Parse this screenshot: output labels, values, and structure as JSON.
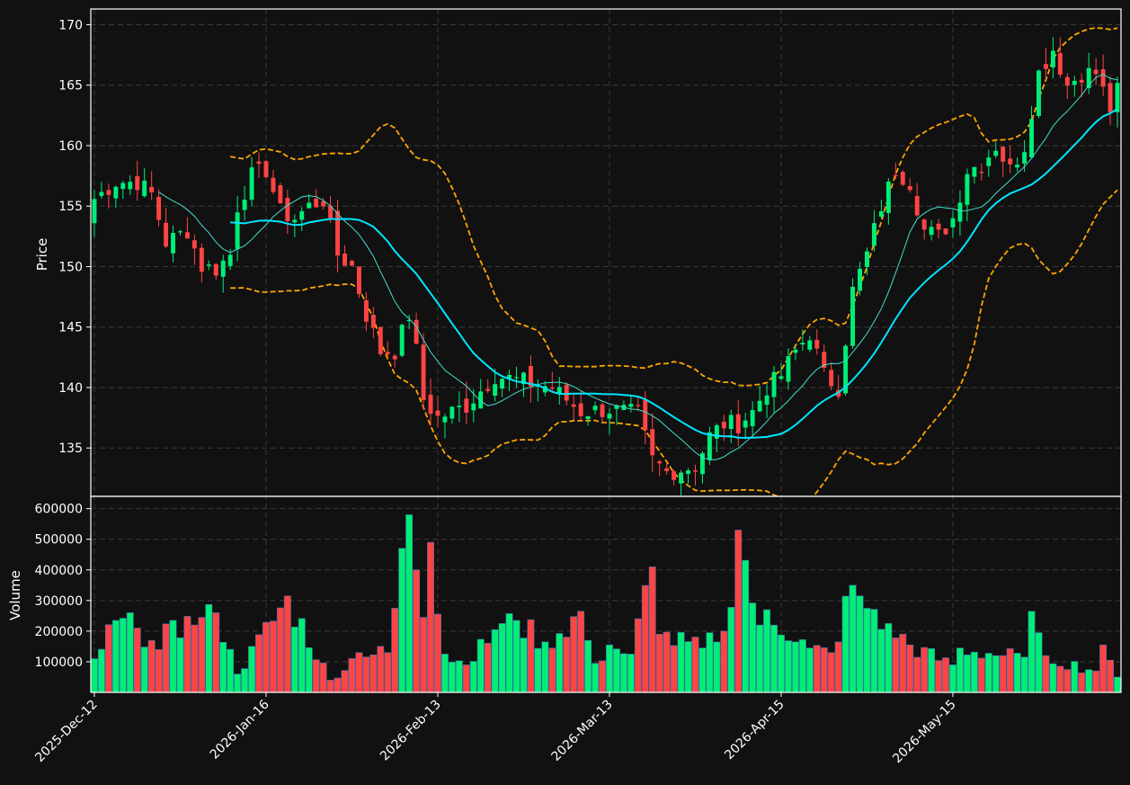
{
  "chart_data": {
    "type": "candlestick",
    "price_panel": {
      "ylabel": "Price",
      "ylim": [
        131.0,
        171.3
      ],
      "yticks": [
        135,
        140,
        145,
        150,
        155,
        160,
        165,
        170
      ],
      "grid": true,
      "overlays": [
        {
          "kind": "moving-average",
          "color": "#40e0d0",
          "width": "thin"
        },
        {
          "kind": "moving-average",
          "color": "#00e5ff",
          "width": "thick"
        },
        {
          "kind": "bollinger-band",
          "color": "#ffa500",
          "style": "dashed"
        }
      ]
    },
    "volume_panel": {
      "ylabel": "Volume",
      "ylim": [
        0,
        640000
      ],
      "yticks": [
        100000,
        200000,
        300000,
        400000,
        500000,
        600000
      ],
      "grid": true
    },
    "x_axis": {
      "tick_labels": [
        "2025-Dec-12",
        "2026-Jan-16",
        "2026-Feb-13",
        "2026-Mar-13",
        "2026-Apr-15",
        "2026-May-15"
      ],
      "tick_index": [
        0,
        24,
        48,
        72,
        96,
        120
      ],
      "bar_count": 144
    },
    "colors": {
      "up": "#00ee76",
      "down": "#ff4444",
      "background": "#111111",
      "grid": "#3a3a3a"
    },
    "anchors": [
      [
        0,
        155.6
      ],
      [
        3,
        157
      ],
      [
        6,
        157
      ],
      [
        8,
        156
      ],
      [
        10,
        152
      ],
      [
        13,
        153
      ],
      [
        15,
        150
      ],
      [
        17,
        149.8
      ],
      [
        19,
        151
      ],
      [
        20,
        155
      ],
      [
        22,
        157.5
      ],
      [
        24,
        158
      ],
      [
        26,
        154.5
      ],
      [
        28,
        154
      ],
      [
        30,
        155
      ],
      [
        32,
        155.5
      ],
      [
        34,
        151
      ],
      [
        36,
        150
      ],
      [
        38,
        146
      ],
      [
        40,
        143
      ],
      [
        42,
        143
      ],
      [
        44,
        146
      ],
      [
        45,
        143
      ],
      [
        46,
        139
      ],
      [
        48,
        137.5
      ],
      [
        52,
        138.5
      ],
      [
        56,
        141
      ],
      [
        60,
        140.5
      ],
      [
        64,
        140
      ],
      [
        68,
        138
      ],
      [
        72,
        138.2
      ],
      [
        76,
        137.8
      ],
      [
        78,
        134
      ],
      [
        80,
        133
      ],
      [
        84,
        133.5
      ],
      [
        86,
        136
      ],
      [
        88,
        137
      ],
      [
        90,
        137
      ],
      [
        92,
        138
      ],
      [
        94,
        140
      ],
      [
        96,
        141
      ],
      [
        98,
        143
      ],
      [
        100,
        144.5
      ],
      [
        102,
        141
      ],
      [
        104,
        140
      ],
      [
        106,
        148
      ],
      [
        108,
        151
      ],
      [
        110,
        155
      ],
      [
        112,
        158
      ],
      [
        114,
        157
      ],
      [
        116,
        153
      ],
      [
        118,
        152.5
      ],
      [
        120,
        154
      ],
      [
        122,
        158
      ],
      [
        124,
        158.5
      ],
      [
        126,
        160
      ],
      [
        128,
        158
      ],
      [
        130,
        160
      ],
      [
        132,
        166
      ],
      [
        134,
        168
      ],
      [
        136,
        165
      ],
      [
        138,
        166
      ],
      [
        140,
        166
      ],
      [
        142,
        163
      ],
      [
        143,
        164.5
      ]
    ],
    "volume_anchors": [
      [
        0,
        110000
      ],
      [
        3,
        235000
      ],
      [
        6,
        210000
      ],
      [
        9,
        140000
      ],
      [
        11,
        235000
      ],
      [
        14,
        220000
      ],
      [
        17,
        260000
      ],
      [
        20,
        60000
      ],
      [
        27,
        315000
      ],
      [
        33,
        40000
      ],
      [
        37,
        130000
      ],
      [
        41,
        130000
      ],
      [
        44,
        580000
      ],
      [
        45,
        400000
      ],
      [
        46,
        245000
      ],
      [
        47,
        490000
      ],
      [
        49,
        125000
      ],
      [
        52,
        90000
      ],
      [
        56,
        205000
      ],
      [
        59,
        235000
      ],
      [
        63,
        165000
      ],
      [
        68,
        265000
      ],
      [
        70,
        95000
      ],
      [
        72,
        155000
      ],
      [
        75,
        125000
      ],
      [
        78,
        410000
      ],
      [
        79,
        190000
      ],
      [
        85,
        145000
      ],
      [
        86,
        195000
      ],
      [
        88,
        200000
      ],
      [
        90,
        530000
      ],
      [
        93,
        220000
      ],
      [
        94,
        270000
      ],
      [
        100,
        145000
      ],
      [
        103,
        130000
      ],
      [
        106,
        350000
      ],
      [
        107,
        315000
      ],
      [
        111,
        225000
      ],
      [
        114,
        155000
      ],
      [
        120,
        90000
      ],
      [
        121,
        145000
      ],
      [
        130,
        115000
      ],
      [
        131,
        265000
      ],
      [
        132,
        195000
      ],
      [
        133,
        120000
      ],
      [
        140,
        70000
      ],
      [
        141,
        155000
      ],
      [
        142,
        105000
      ],
      [
        143,
        50000
      ]
    ]
  }
}
